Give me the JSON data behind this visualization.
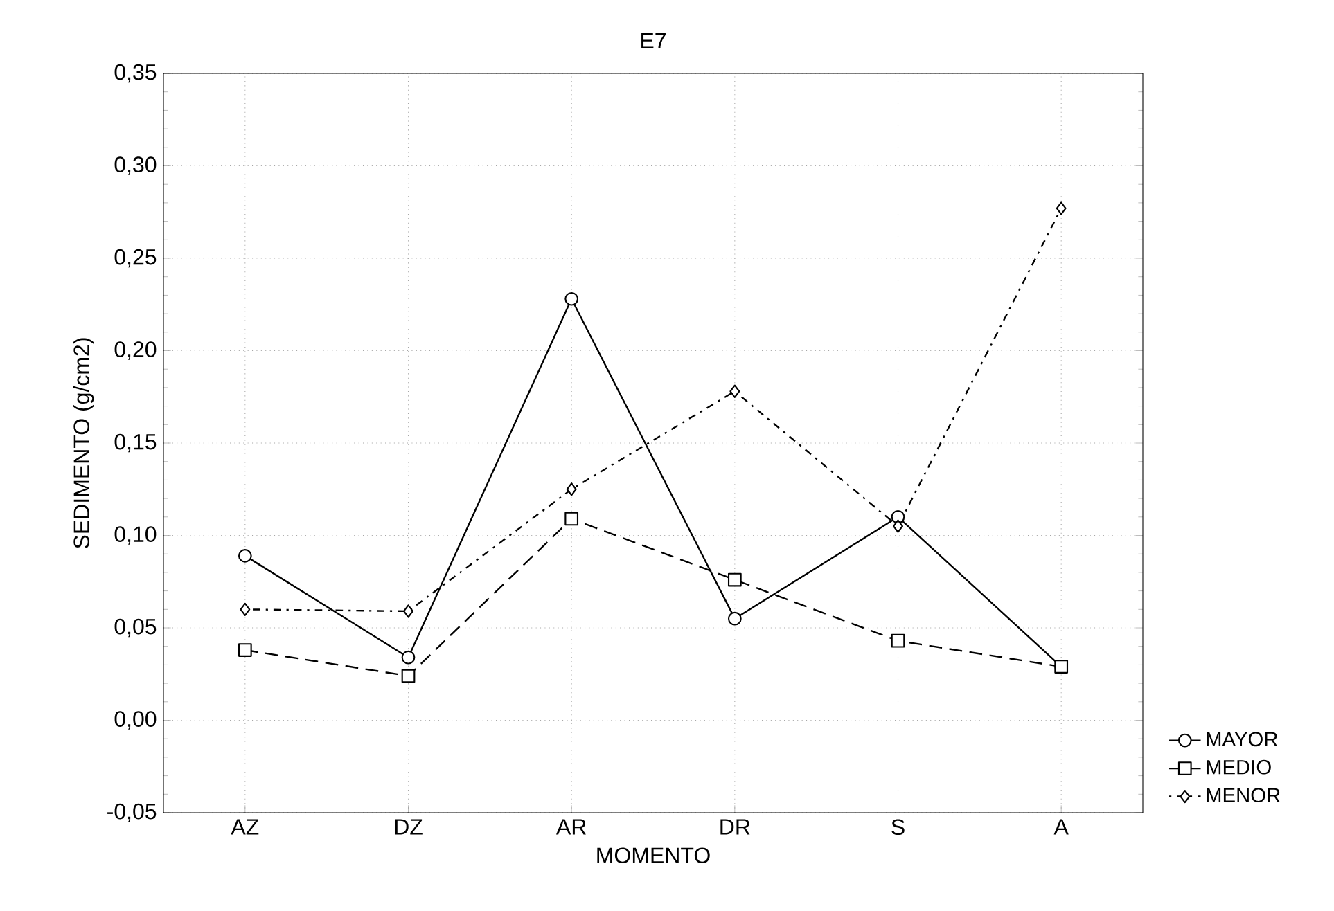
{
  "chart_data": {
    "type": "line",
    "title": "E7",
    "xlabel": "MOMENTO",
    "ylabel": "SEDIMENTO (g/cm2)",
    "categories": [
      "AZ",
      "DZ",
      "AR",
      "DR",
      "S",
      "A"
    ],
    "series": [
      {
        "name": "MAYOR",
        "color": "#000000",
        "marker": "circle",
        "line_style": "solid",
        "values": [
          0.089,
          0.034,
          0.228,
          0.055,
          0.11,
          0.029
        ]
      },
      {
        "name": "MEDIO",
        "color": "#000000",
        "marker": "square",
        "line_style": "dashed",
        "values": [
          0.038,
          0.024,
          0.109,
          0.076,
          0.043,
          0.029
        ]
      },
      {
        "name": "MENOR",
        "color": "#000000",
        "marker": "diamond",
        "line_style": "dotted",
        "values": [
          0.06,
          0.059,
          0.125,
          0.178,
          0.105,
          0.277
        ]
      }
    ],
    "ylim": [
      -0.05,
      0.35
    ],
    "yticks": [
      {
        "value": -0.05,
        "label": "-0,05"
      },
      {
        "value": 0,
        "label": "0,00"
      },
      {
        "value": 0.05,
        "label": "0,05"
      },
      {
        "value": 0.1,
        "label": "0,10"
      },
      {
        "value": 0.15,
        "label": "0,15"
      },
      {
        "value": 0.2,
        "label": "0,20"
      },
      {
        "value": 0.25,
        "label": "0,25"
      },
      {
        "value": 0.3,
        "label": "0,30"
      },
      {
        "value": 0.35,
        "label": "0,35"
      }
    ],
    "grid": true,
    "legend": "bottom right"
  }
}
